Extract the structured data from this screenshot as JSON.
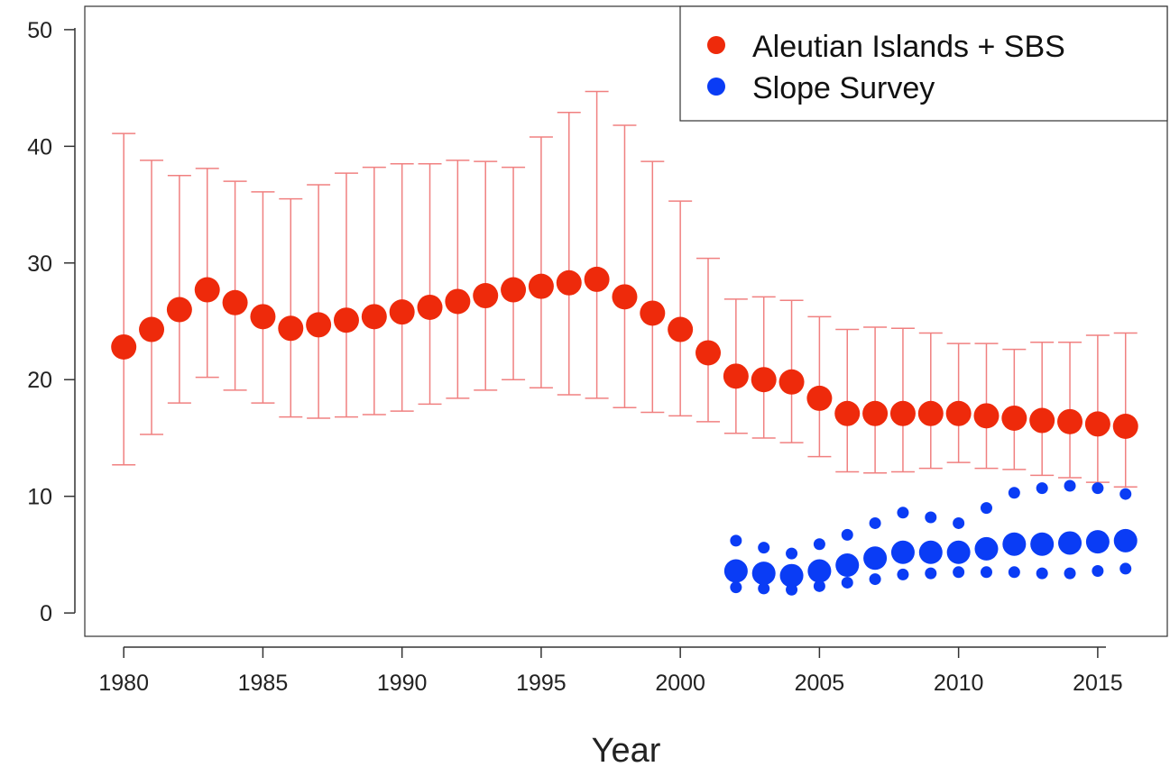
{
  "chart_data": {
    "type": "scatter",
    "title": "",
    "xlabel": "Year",
    "ylabel": "",
    "xlim": [
      1978.6,
      2017.5
    ],
    "ylim": [
      -2,
      52
    ],
    "x_ticks": [
      1980,
      1985,
      1990,
      1995,
      2000,
      2005,
      2010,
      2015
    ],
    "x_tick_labels": [
      "1980",
      "1985",
      "1990",
      "1995",
      "2000",
      "2005",
      "2010",
      "2015"
    ],
    "y_ticks": [
      0,
      10,
      20,
      30,
      40,
      50
    ],
    "y_tick_labels": [
      "0",
      "10",
      "20",
      "30",
      "40",
      "50"
    ],
    "grid": false,
    "legend_position": "top-right",
    "series": [
      {
        "name": "Aleutian Islands + SBS",
        "color": "#ee2a0b",
        "errorbar_color": "#f08080",
        "x": [
          1980,
          1981,
          1982,
          1983,
          1984,
          1985,
          1986,
          1987,
          1988,
          1989,
          1990,
          1991,
          1992,
          1993,
          1994,
          1995,
          1996,
          1997,
          1998,
          1999,
          2000,
          2001,
          2002,
          2003,
          2004,
          2005,
          2006,
          2007,
          2008,
          2009,
          2010,
          2011,
          2012,
          2013,
          2014,
          2015,
          2016
        ],
        "y": [
          22.8,
          24.3,
          26.0,
          27.7,
          26.6,
          25.4,
          24.4,
          24.7,
          25.1,
          25.4,
          25.8,
          26.2,
          26.7,
          27.2,
          27.7,
          28.0,
          28.3,
          28.6,
          27.1,
          25.7,
          24.3,
          22.3,
          20.3,
          20.0,
          19.8,
          18.4,
          17.1,
          17.1,
          17.1,
          17.1,
          17.1,
          16.9,
          16.7,
          16.5,
          16.4,
          16.2,
          16.0
        ],
        "lower": [
          12.7,
          15.3,
          18.0,
          20.2,
          19.1,
          18.0,
          16.8,
          16.7,
          16.8,
          17.0,
          17.3,
          17.9,
          18.4,
          19.1,
          20.0,
          19.3,
          18.7,
          18.4,
          17.6,
          17.2,
          16.9,
          16.4,
          15.4,
          15.0,
          14.6,
          13.4,
          12.1,
          12.0,
          12.1,
          12.4,
          12.9,
          12.4,
          12.3,
          11.8,
          11.6,
          11.2,
          10.8
        ],
        "upper": [
          41.1,
          38.8,
          37.5,
          38.1,
          37.0,
          36.1,
          35.5,
          36.7,
          37.7,
          38.2,
          38.5,
          38.5,
          38.8,
          38.7,
          38.2,
          40.8,
          42.9,
          44.7,
          41.8,
          38.7,
          35.3,
          30.4,
          26.9,
          27.1,
          26.8,
          25.4,
          24.3,
          24.5,
          24.4,
          24.0,
          23.1,
          23.1,
          22.6,
          23.2,
          23.2,
          23.8,
          24.0
        ]
      },
      {
        "name": "Slope Survey",
        "color": "#0a3cf5",
        "x": [
          2002,
          2003,
          2004,
          2005,
          2006,
          2007,
          2008,
          2009,
          2010,
          2011,
          2012,
          2013,
          2014,
          2015,
          2016
        ],
        "y": [
          3.6,
          3.4,
          3.2,
          3.6,
          4.1,
          4.7,
          5.2,
          5.2,
          5.2,
          5.5,
          5.9,
          5.9,
          6.0,
          6.1,
          6.2
        ],
        "lower": [
          2.2,
          2.1,
          2.0,
          2.3,
          2.6,
          2.9,
          3.3,
          3.4,
          3.5,
          3.5,
          3.5,
          3.4,
          3.4,
          3.6,
          3.8
        ],
        "upper": [
          6.2,
          5.6,
          5.1,
          5.9,
          6.7,
          7.7,
          8.6,
          8.2,
          7.7,
          9.0,
          10.3,
          10.7,
          10.9,
          10.7,
          10.2
        ]
      }
    ]
  }
}
